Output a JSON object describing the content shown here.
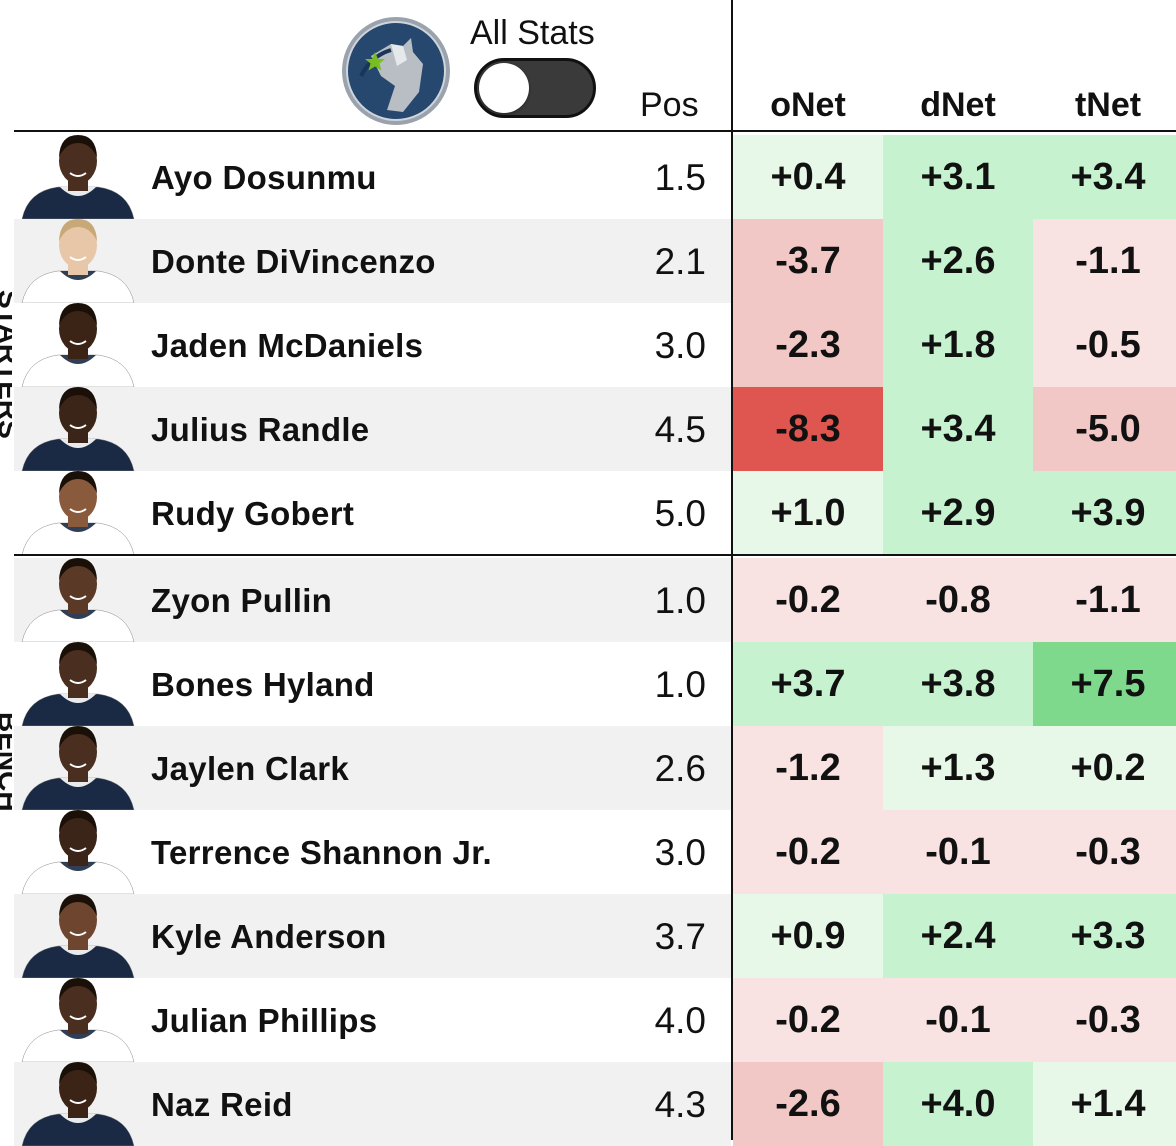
{
  "header": {
    "toggle_label": "All Stats",
    "toggle_on": false,
    "col_pos": "Pos",
    "col_onet": "oNet",
    "col_dnet": "dNet",
    "col_tnet": "tNet"
  },
  "colors": {
    "green_light": "#e8f8e8",
    "green_mid": "#c6f2cf",
    "green_strong": "#7fd98d",
    "red_light": "#f8e2e2",
    "red_mid": "#f2c8c6",
    "red_strong": "#df5550"
  },
  "groups": [
    {
      "label": "STARTERS",
      "rows": [
        0,
        4
      ]
    },
    {
      "label": "BENCH",
      "rows": [
        5,
        11
      ]
    }
  ],
  "players": [
    {
      "name": "Ayo Dosunmu",
      "pos": "1.5",
      "onet": "+0.4",
      "dnet": "+3.1",
      "tnet": "+3.4"
    },
    {
      "name": "Donte DiVincenzo",
      "pos": "2.1",
      "onet": "-3.7",
      "dnet": "+2.6",
      "tnet": "-1.1"
    },
    {
      "name": "Jaden McDaniels",
      "pos": "3.0",
      "onet": "-2.3",
      "dnet": "+1.8",
      "tnet": "-0.5"
    },
    {
      "name": "Julius Randle",
      "pos": "4.5",
      "onet": "-8.3",
      "dnet": "+3.4",
      "tnet": "-5.0"
    },
    {
      "name": "Rudy Gobert",
      "pos": "5.0",
      "onet": "+1.0",
      "dnet": "+2.9",
      "tnet": "+3.9"
    },
    {
      "name": "Zyon Pullin",
      "pos": "1.0",
      "onet": "-0.2",
      "dnet": "-0.8",
      "tnet": "-1.1"
    },
    {
      "name": "Bones Hyland",
      "pos": "1.0",
      "onet": "+3.7",
      "dnet": "+3.8",
      "tnet": "+7.5"
    },
    {
      "name": "Jaylen Clark",
      "pos": "2.6",
      "onet": "-1.2",
      "dnet": "+1.3",
      "tnet": "+0.2"
    },
    {
      "name": "Terrence Shannon Jr.",
      "pos": "3.0",
      "onet": "-0.2",
      "dnet": "-0.1",
      "tnet": "-0.3"
    },
    {
      "name": "Kyle Anderson",
      "pos": "3.7",
      "onet": "+0.9",
      "dnet": "+2.4",
      "tnet": "+3.3"
    },
    {
      "name": "Julian Phillips",
      "pos": "4.0",
      "onet": "-0.2",
      "dnet": "-0.1",
      "tnet": "-0.3"
    },
    {
      "name": "Naz Reid",
      "pos": "4.3",
      "onet": "-2.6",
      "dnet": "+4.0",
      "tnet": "+1.4"
    }
  ]
}
